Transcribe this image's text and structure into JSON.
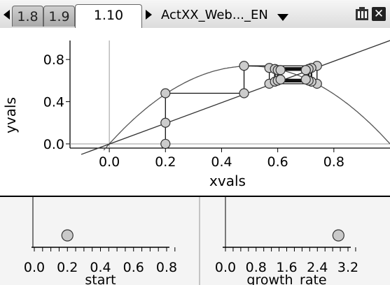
{
  "tabs": [
    {
      "label": "1.8",
      "active": false
    },
    {
      "label": "1.9",
      "active": false
    },
    {
      "label": "1.10",
      "active": true
    }
  ],
  "document": {
    "title": "ActXX_Web..._EN"
  },
  "graph": {
    "x_axis_label": "xvals",
    "y_axis_label": "yvals",
    "x_ticks": [
      "0.0",
      "0.2",
      "0.4",
      "0.6",
      "0.8"
    ],
    "y_ticks": [
      "0.0",
      "0.4",
      "0.8"
    ]
  },
  "sliders": [
    {
      "label": "start",
      "ticks": [
        "0.0",
        "0.2",
        "0.4",
        "0.6",
        "0.8"
      ],
      "value": 0.2
    },
    {
      "label": "growth_rate",
      "ticks": [
        "0.0",
        "0.8",
        "1.6",
        "2.4",
        "3.2"
      ],
      "value": 2.95
    }
  ],
  "chart_data": {
    "type": "line",
    "xlabel": "xvals",
    "ylabel": "yvals",
    "xlim": [
      -0.14,
      1.0
    ],
    "ylim": [
      -0.04,
      0.98
    ],
    "grid": false,
    "series": [
      {
        "kind": "curve",
        "function": "r*x*(1-x)",
        "r": 2.95
      },
      {
        "kind": "line",
        "function": "y=x"
      },
      {
        "kind": "cobweb",
        "points": [
          [
            0.2,
            0.0
          ],
          [
            0.2,
            0.2
          ],
          [
            0.2,
            0.48
          ],
          [
            0.48,
            0.48
          ],
          [
            0.48,
            0.74
          ],
          [
            0.74,
            0.74
          ],
          [
            0.74,
            0.57
          ],
          [
            0.57,
            0.57
          ],
          [
            0.57,
            0.72
          ],
          [
            0.72,
            0.72
          ],
          [
            0.72,
            0.59
          ],
          [
            0.59,
            0.59
          ],
          [
            0.59,
            0.71
          ],
          [
            0.71,
            0.71
          ],
          [
            0.71,
            0.6
          ],
          [
            0.6,
            0.6
          ],
          [
            0.6,
            0.7
          ],
          [
            0.7,
            0.7
          ],
          [
            0.7,
            0.61
          ],
          [
            0.61,
            0.61
          ],
          [
            0.61,
            0.7
          ],
          [
            0.7,
            0.7
          ]
        ]
      }
    ]
  }
}
